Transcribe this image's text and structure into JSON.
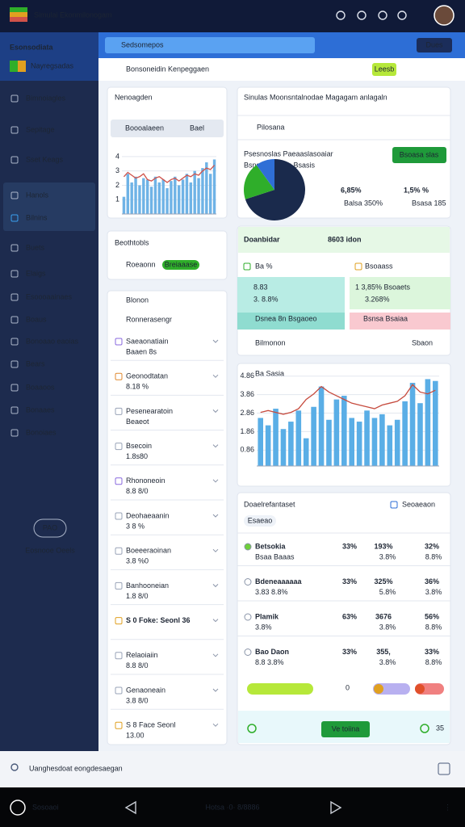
{
  "topbar": {
    "title": "Simulai Ekonmilonogam"
  },
  "sidebar": {
    "brand": "Esonsodiata",
    "subtitle": "Nayregsadas",
    "items": [
      "Bimnoiagles",
      "Sepitage",
      "Sset Keags",
      "Hanols",
      "Bilnins",
      "Buets",
      "Elaigs",
      "Esoooaainaes",
      "Boaus",
      "Bonoaao eaoias",
      "Bears",
      "Boaaoos",
      "Bonaaes",
      "Bonoiaes"
    ],
    "active": "Bilnins",
    "badge": "PAO",
    "footer": "Eosnooe Oeels"
  },
  "searchbar": {
    "placeholder": "Sedsomepos",
    "button": "Dues"
  },
  "breadcrumb": {
    "items": [
      "Bonsoneidin",
      "Kenpeggaen"
    ],
    "chip": "Leesb"
  },
  "overview_card": {
    "title": "Nenoagden",
    "search": "Boooalaeen",
    "filter": "Bael"
  },
  "status_card": {
    "title": "Beothtobls",
    "label": "Roeaonn",
    "chip": "Breiaaase"
  },
  "list_card": {
    "title": "Blonon",
    "subtitle": "Ronnerasengr",
    "items": [
      {
        "name": "Saeaonatiain",
        "sub": "Baaen 8s"
      },
      {
        "name": "Geonodtatan",
        "sub": "8.18 %"
      },
      {
        "name": "Pesenearatoin",
        "sub": "Beaeot"
      },
      {
        "name": "Bsecoin",
        "sub": "1.8s80"
      },
      {
        "name": "Rhononeoin",
        "sub": "8.8 8/0"
      },
      {
        "name": "Deohaeaanin",
        "sub": "3 8 %"
      },
      {
        "name": "Boeeeraoinan",
        "sub": "3.8 %0"
      },
      {
        "name": "Banhooneian",
        "sub": "1.8 8/0"
      },
      {
        "name": "S 0 Foke: Seonl 36"
      },
      {
        "name": "Relaoiaiin",
        "sub": "8.8 8/0"
      },
      {
        "name": "Genaoneain",
        "sub": "3.8 8/0"
      },
      {
        "name": "S 8 Face Seonl",
        "sub": "13.00"
      }
    ]
  },
  "summary_card": {
    "title": "Sinulas Moonsntalnodae Magagam anlagaln",
    "search": "Pilosana",
    "caption": "Psesnoslas Paeaaslasoaiar",
    "subcaption": "Bsnsdaaa Dnu Bsasis",
    "button": "Bsoasa slas",
    "stat1": "6,85%",
    "stat1_sub": "Balsa 350%",
    "stat2": "1,5% %",
    "stat2_sub": "Bsasa 185"
  },
  "metrics_card": {
    "title": "Doanbidar",
    "value": "8603 idon",
    "left_label": "Ba %",
    "right_label": "Bsoaass",
    "teal_value": "8.83",
    "teal_sub": "3. 8.8%",
    "green_value": "1 3,85% Bsoaets",
    "green_sub": "3.268%",
    "teal_bar": "Dsnea 8n Bsgaoeo",
    "pink_bar": "Bsnsa Bsaiaa",
    "footer_left": "Bilmonon",
    "footer_right": "Sbaon"
  },
  "table_card": {
    "title": "Doaelrefantaset",
    "action": "Seoaeaon",
    "chip": "Esaeao",
    "rows": [
      [
        "Betsokia",
        "Bsaa Baaas",
        "33%",
        "193%",
        "3.8%",
        "32%",
        "8.8%"
      ],
      [
        "Bdeneaaaaaa",
        "3.83 8.8%",
        "33%",
        "325%",
        "5.8%",
        "36%",
        "3.8%"
      ],
      [
        "Plamik",
        "3.8%",
        "63%",
        "3676",
        "3.8%",
        "56%",
        "8.8%"
      ],
      [
        "Bao Daon",
        "8.8 3.8%",
        "33%",
        "355,",
        "3.8%",
        "33%",
        "8.8%"
      ]
    ],
    "pill_value": "0",
    "button": "Ve toiina",
    "footer_note": "35"
  },
  "bottom_search": {
    "placeholder": "Uanghesdoat eongdesaegan"
  },
  "bottom_nav": {
    "left": "Sosoaoi",
    "center": "Hotsa ·0· 8/8886"
  },
  "chart_data": [
    {
      "type": "bar",
      "series": [
        {
          "type": "bar",
          "color": "#6fb3e6",
          "values": [
            1.2,
            2.8,
            2.2,
            2.6,
            2.0,
            2.5,
            2.4,
            1.9,
            2.6,
            2.2,
            2.4,
            1.8,
            2.3,
            2.6,
            2.0,
            2.4,
            2.8,
            2.2,
            3.0,
            2.5,
            3.2,
            3.6,
            2.8,
            3.8
          ]
        },
        {
          "type": "line",
          "color": "#d0524a",
          "values": [
            2.6,
            2.9,
            2.7,
            2.5,
            2.6,
            2.8,
            2.4,
            2.3,
            2.5,
            2.6,
            2.4,
            2.2,
            2.4,
            2.5,
            2.3,
            2.5,
            2.7,
            2.6,
            2.8,
            2.7,
            3.0,
            3.2,
            3.1,
            3.4
          ]
        }
      ],
      "ylim": [
        0,
        4.5
      ],
      "yticks": [
        1,
        2,
        3,
        4
      ],
      "grid": true
    },
    {
      "type": "pie",
      "values": [
        70,
        20,
        10
      ],
      "colors": [
        "#1a2a4c",
        "#2fae2a",
        "#2f6fd6"
      ]
    },
    {
      "type": "bar",
      "title": "Ba Sasia",
      "series": [
        {
          "type": "bar",
          "color": "#5aaee6",
          "values": [
            2.6,
            2.2,
            3.1,
            2.0,
            2.4,
            3.0,
            1.5,
            3.2,
            4.3,
            2.5,
            3.6,
            3.8,
            2.6,
            2.4,
            3.0,
            2.6,
            2.8,
            2.2,
            2.5,
            3.5,
            4.5,
            3.4,
            4.7,
            4.6
          ]
        },
        {
          "type": "line",
          "color": "#c64b3e",
          "values": [
            2.9,
            3.0,
            2.9,
            2.8,
            2.9,
            3.1,
            3.6,
            3.9,
            4.3,
            4.0,
            3.8,
            3.6,
            3.4,
            3.3,
            3.2,
            3.1,
            3.3,
            3.4,
            3.5,
            3.8,
            4.4,
            4.0,
            3.9,
            4.1
          ]
        }
      ],
      "ylim": [
        0,
        5.2
      ],
      "yticks": [
        0.86,
        1.86,
        2.86,
        3.86,
        4.86
      ],
      "grid": true
    }
  ]
}
